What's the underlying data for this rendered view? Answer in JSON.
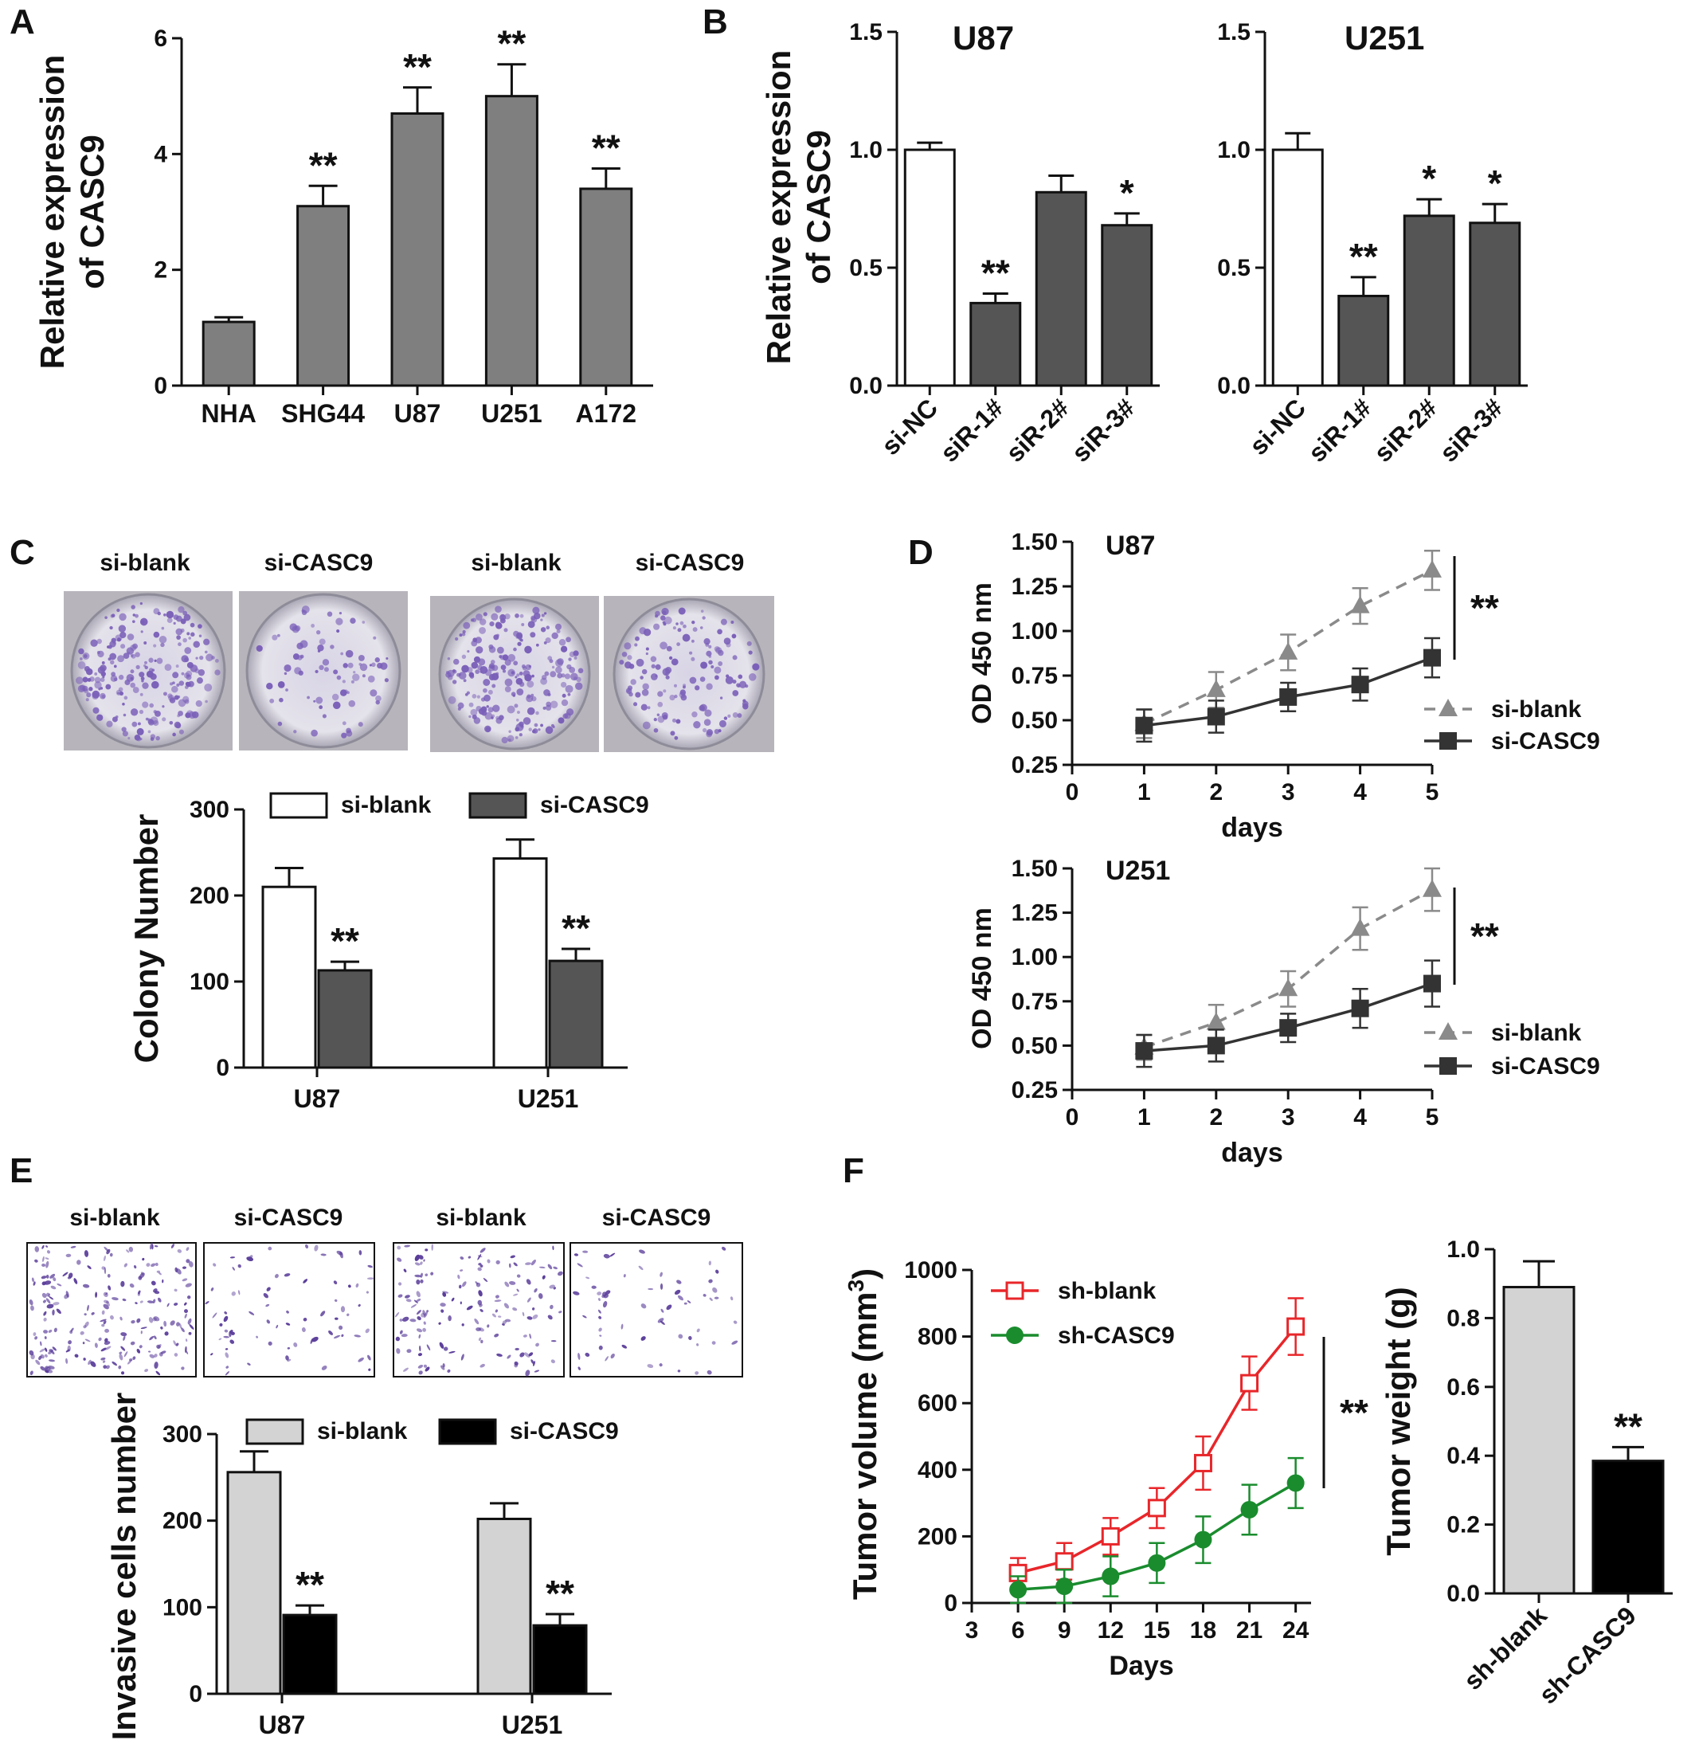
{
  "panels": {
    "A": "A",
    "B": "B",
    "C": "C",
    "D": "D",
    "E": "E",
    "F": "F"
  },
  "colors": {
    "gray_bar": "#7f7f7f",
    "dark_bar": "#555555",
    "light_bar": "#d3d3d3",
    "black_bar": "#000000",
    "line_gray": "#8a8a8a",
    "line_dark": "#333333",
    "sh_blank": "#e8262a",
    "sh_casc9": "#1a8c2e",
    "dish_purple": "#7a5fb8",
    "cells_purple": "#5a3d9a"
  },
  "images": {
    "colony": {
      "labels": [
        "si-blank",
        "si-CASC9",
        "si-blank",
        "si-CASC9"
      ]
    },
    "invasion": {
      "labels": [
        "si-blank",
        "si-CASC9",
        "si-blank",
        "si-CASC9"
      ]
    }
  },
  "chart_data": [
    {
      "id": "A",
      "type": "bar",
      "ylabel": "Relative expression of CASC9",
      "ylabel_lines": [
        "Relative expression",
        "of CASC9"
      ],
      "ylim": [
        0,
        6
      ],
      "yticks": [
        0,
        2,
        4,
        6
      ],
      "categories": [
        "NHA",
        "SHG44",
        "U87",
        "U251",
        "A172"
      ],
      "values": [
        1.1,
        3.1,
        4.7,
        5.0,
        3.4
      ],
      "errors": [
        0.08,
        0.35,
        0.45,
        0.55,
        0.35
      ],
      "significance": [
        "",
        "**",
        "**",
        "**",
        "**"
      ]
    },
    {
      "id": "B1",
      "type": "bar",
      "title": "U87",
      "ylabel": "Relative expression of CASC9",
      "ylabel_lines": [
        "Relative expression",
        "of CASC9"
      ],
      "ylim": [
        0,
        1.5
      ],
      "yticks": [
        "0.0",
        "0.5",
        "1.0",
        "1.5"
      ],
      "categories": [
        "si-NC",
        "siR-1#",
        "siR-2#",
        "siR-3#"
      ],
      "values": [
        1.0,
        0.35,
        0.82,
        0.68
      ],
      "errors": [
        0.03,
        0.04,
        0.07,
        0.05
      ],
      "significance": [
        "",
        "**",
        "",
        "*"
      ]
    },
    {
      "id": "B2",
      "type": "bar",
      "title": "U251",
      "ylim": [
        0,
        1.5
      ],
      "yticks": [
        "0.0",
        "0.5",
        "1.0",
        "1.5"
      ],
      "categories": [
        "si-NC",
        "siR-1#",
        "siR-2#",
        "siR-3#"
      ],
      "values": [
        1.0,
        0.38,
        0.72,
        0.69
      ],
      "errors": [
        0.07,
        0.08,
        0.07,
        0.08
      ],
      "significance": [
        "",
        "**",
        "*",
        "*"
      ]
    },
    {
      "id": "C",
      "type": "bar",
      "ylabel": "Colony Number",
      "ylim": [
        0,
        300
      ],
      "yticks": [
        0,
        100,
        200,
        300
      ],
      "categories": [
        "U87",
        "U251"
      ],
      "series": [
        {
          "name": "si-blank",
          "values": [
            210,
            243
          ],
          "errors": [
            22,
            22
          ]
        },
        {
          "name": "si-CASC9",
          "values": [
            113,
            124
          ],
          "errors": [
            10,
            14
          ],
          "significance": [
            "**",
            "**"
          ]
        }
      ],
      "legend": "top"
    },
    {
      "id": "D1",
      "type": "line",
      "title": "U87",
      "xlabel": "days",
      "ylabel": "OD 450 nm",
      "xlim": [
        0,
        5
      ],
      "xticks": [
        0,
        1,
        2,
        3,
        4,
        5
      ],
      "ylim": [
        0.25,
        1.5
      ],
      "yticks": [
        "0.25",
        "0.50",
        "0.75",
        "1.00",
        "1.25",
        "1.50"
      ],
      "x": [
        1,
        2,
        3,
        4,
        5
      ],
      "series": [
        {
          "name": "si-blank",
          "values": [
            0.48,
            0.67,
            0.88,
            1.14,
            1.34
          ],
          "errors": [
            0.08,
            0.1,
            0.1,
            0.1,
            0.11
          ]
        },
        {
          "name": "si-CASC9",
          "values": [
            0.47,
            0.52,
            0.63,
            0.7,
            0.85
          ],
          "errors": [
            0.09,
            0.09,
            0.08,
            0.09,
            0.11
          ]
        }
      ],
      "significance": "**",
      "legend": "bottom-right"
    },
    {
      "id": "D2",
      "type": "line",
      "title": "U251",
      "xlabel": "days",
      "ylabel": "OD 450 nm",
      "xlim": [
        0,
        5
      ],
      "xticks": [
        0,
        1,
        2,
        3,
        4,
        5
      ],
      "ylim": [
        0.25,
        1.5
      ],
      "yticks": [
        "0.25",
        "0.50",
        "0.75",
        "1.00",
        "1.25",
        "1.50"
      ],
      "x": [
        1,
        2,
        3,
        4,
        5
      ],
      "series": [
        {
          "name": "si-blank",
          "values": [
            0.49,
            0.63,
            0.82,
            1.16,
            1.38
          ],
          "errors": [
            0.07,
            0.1,
            0.1,
            0.12,
            0.12
          ]
        },
        {
          "name": "si-CASC9",
          "values": [
            0.47,
            0.5,
            0.6,
            0.71,
            0.85
          ],
          "errors": [
            0.09,
            0.09,
            0.08,
            0.11,
            0.13
          ]
        }
      ],
      "significance": "**",
      "legend": "bottom-right"
    },
    {
      "id": "E",
      "type": "bar",
      "ylabel": "Invasive cells number",
      "ylim": [
        0,
        300
      ],
      "yticks": [
        0,
        100,
        200,
        300
      ],
      "categories": [
        "U87",
        "U251"
      ],
      "series": [
        {
          "name": "si-blank",
          "values": [
            256,
            202
          ],
          "errors": [
            24,
            18
          ]
        },
        {
          "name": "si-CASC9",
          "values": [
            91,
            79
          ],
          "errors": [
            11,
            13
          ],
          "significance": [
            "**",
            "**"
          ]
        }
      ],
      "legend": "top"
    },
    {
      "id": "F1",
      "type": "line",
      "xlabel": "Days",
      "ylabel": "Tumor volume (mm³)",
      "ylabel_base": "Tumor volume (mm",
      "ylabel_sup": "3",
      "ylabel_end": ")",
      "xlim": [
        3,
        25
      ],
      "xticks": [
        3,
        6,
        9,
        12,
        15,
        18,
        21,
        24
      ],
      "ylim": [
        0,
        1000
      ],
      "yticks": [
        0,
        200,
        400,
        600,
        800,
        1000
      ],
      "x": [
        6,
        9,
        12,
        15,
        18,
        21,
        24
      ],
      "series": [
        {
          "name": "sh-blank",
          "values": [
            90,
            125,
            200,
            285,
            420,
            660,
            830
          ],
          "errors": [
            45,
            55,
            55,
            60,
            80,
            80,
            85
          ]
        },
        {
          "name": "sh-CASC9",
          "values": [
            40,
            50,
            80,
            120,
            190,
            280,
            360
          ],
          "errors": [
            40,
            50,
            60,
            60,
            70,
            75,
            75
          ]
        }
      ],
      "significance": "**",
      "legend": "top-left"
    },
    {
      "id": "F2",
      "type": "bar",
      "ylabel": "Tumor weight (g)",
      "ylim": [
        0,
        1.0
      ],
      "yticks": [
        "0.0",
        "0.2",
        "0.4",
        "0.6",
        "0.8",
        "1.0"
      ],
      "categories": [
        "sh-blank",
        "sh-CASC9"
      ],
      "values": [
        0.89,
        0.385
      ],
      "errors": [
        0.075,
        0.04
      ],
      "significance": [
        "",
        "**"
      ]
    }
  ]
}
